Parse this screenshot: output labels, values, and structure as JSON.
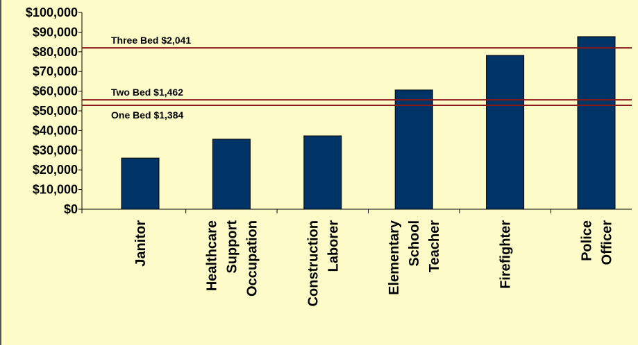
{
  "chart_data": {
    "type": "bar",
    "categories": [
      [
        "Janitor"
      ],
      [
        "Healthcare",
        "Support",
        "Occupation"
      ],
      [
        "Construction",
        "Laborer"
      ],
      [
        "Elementary",
        "School",
        "Teacher"
      ],
      [
        "Firefighter"
      ],
      [
        "Police",
        "Officer"
      ]
    ],
    "values": [
      26000,
      35600,
      37300,
      60600,
      78200,
      87700
    ],
    "color": "#003366",
    "ylim": [
      0,
      100000
    ],
    "yticks": [
      {
        "value": 0,
        "label": "$0"
      },
      {
        "value": 10000,
        "label": "$10,000"
      },
      {
        "value": 20000,
        "label": "$20,000"
      },
      {
        "value": 30000,
        "label": "$30,000"
      },
      {
        "value": 40000,
        "label": "$40,000"
      },
      {
        "value": 50000,
        "label": "$50,000"
      },
      {
        "value": 60000,
        "label": "$60,000"
      },
      {
        "value": 70000,
        "label": "$70,000"
      },
      {
        "value": 80000,
        "label": "$80,000"
      },
      {
        "value": 90000,
        "label": "$90,000"
      },
      {
        "value": 100000,
        "label": "$100,000"
      }
    ],
    "reference_lines": [
      {
        "label": "Three Bed $2,041",
        "value": 82000,
        "label_side": "above"
      },
      {
        "label": "Two Bed $1,462",
        "value": 55600,
        "label_side": "above"
      },
      {
        "label": "One Bed $1,384",
        "value": 52800,
        "label_side": "below"
      }
    ],
    "reference_color": "#8b1a1a"
  }
}
